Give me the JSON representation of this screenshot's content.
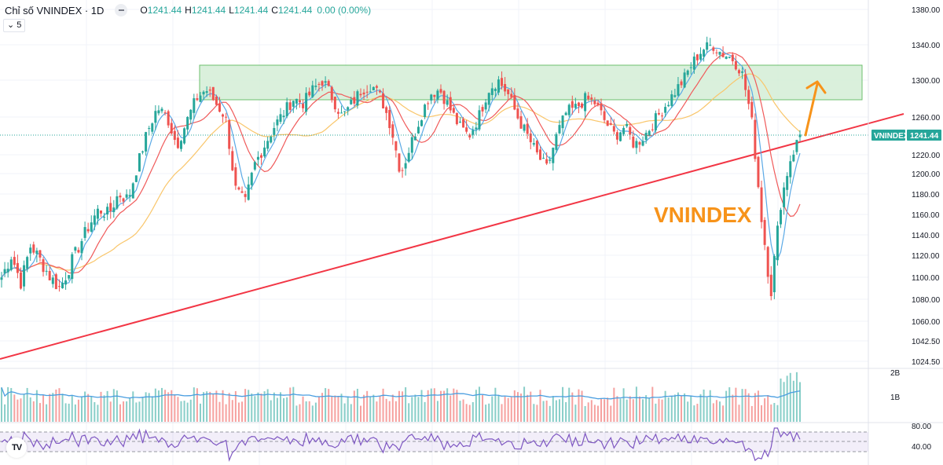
{
  "header": {
    "title": "Chỉ số VNINDEX · 1D",
    "ohlc": {
      "o_label": "O",
      "o": "1241.44",
      "h_label": "H",
      "h": "1241.44",
      "l_label": "L",
      "l": "1241.44",
      "c_label": "C",
      "c": "1241.44"
    },
    "change": "0.00 (0.00%)",
    "collapse_label": "5"
  },
  "annotation": {
    "text": "VNINDEX",
    "color": "#f7931a"
  },
  "price_tag": {
    "symbol": "VNINDEX",
    "value": "1241.44",
    "color": "#26a69a"
  },
  "colors": {
    "up": "#26a69a",
    "down": "#ef5350",
    "ma_fast": "#5aa9e6",
    "ma_mid": "#f05a5a",
    "ma_slow": "#f9c66b",
    "zone_fill": "#d4edd6",
    "zone_border": "#6cbf6e",
    "trendline": "#f23645",
    "arrow": "#f7931a",
    "rsi": "#7e57c2"
  },
  "logo": {
    "text": "TV"
  },
  "chart_data": {
    "type": "candlestick",
    "title": "Chỉ số VNINDEX · 1D",
    "ylabel": "",
    "price_axis_ticks": [
      "1380.00",
      "1340.00",
      "1300.00",
      "1260.00",
      "1220.00",
      "1200.00",
      "1180.00",
      "1160.00",
      "1140.00",
      "1120.00",
      "1100.00",
      "1080.00",
      "1060.00",
      "1042.50",
      "1024.50"
    ],
    "price_axis_tick_y": [
      12,
      57,
      102,
      149,
      197,
      221,
      247,
      273,
      299,
      325,
      353,
      381,
      409,
      434,
      460
    ],
    "last_price": 1241.44,
    "resistance_zone": {
      "low": 1278,
      "high": 1316
    },
    "trendline": {
      "from_price": 1028,
      "to_price": 1262
    },
    "close_series_approx": [
      1100,
      1120,
      1095,
      1130,
      1115,
      1100,
      1090,
      1110,
      1130,
      1150,
      1165,
      1160,
      1180,
      1175,
      1210,
      1245,
      1270,
      1260,
      1230,
      1255,
      1280,
      1290,
      1275,
      1260,
      1185,
      1170,
      1210,
      1230,
      1250,
      1265,
      1280,
      1275,
      1290,
      1300,
      1280,
      1260,
      1275,
      1290,
      1295,
      1280,
      1250,
      1200,
      1230,
      1260,
      1285,
      1290,
      1270,
      1250,
      1240,
      1260,
      1290,
      1300,
      1285,
      1260,
      1240,
      1220,
      1205,
      1240,
      1265,
      1270,
      1280,
      1275,
      1255,
      1240,
      1250,
      1230,
      1240,
      1255,
      1270,
      1285,
      1300,
      1320,
      1335,
      1340,
      1330,
      1325,
      1310,
      1260,
      1160,
      1085,
      1170,
      1215,
      1241
    ],
    "volume_axis_ticks": [
      "2B",
      "1B"
    ],
    "rsi_axis_ticks": [
      "80.00",
      "40.00"
    ],
    "rsi_levels": [
      70,
      50,
      30
    ]
  }
}
